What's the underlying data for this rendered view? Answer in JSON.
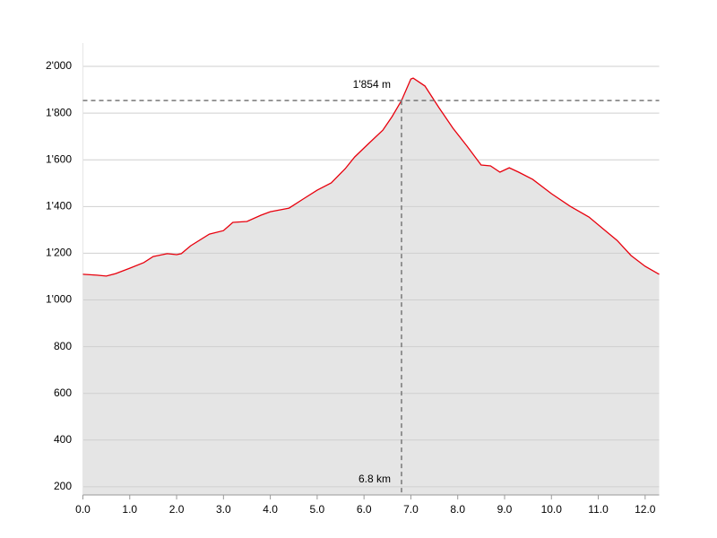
{
  "chart_data": {
    "type": "area",
    "x": [
      0.0,
      0.3,
      0.5,
      0.7,
      1.0,
      1.3,
      1.5,
      1.8,
      2.0,
      2.1,
      2.3,
      2.7,
      3.0,
      3.2,
      3.5,
      3.8,
      4.0,
      4.4,
      4.7,
      5.0,
      5.3,
      5.6,
      5.8,
      6.1,
      6.4,
      6.6,
      6.8,
      7.0,
      7.05,
      7.3,
      7.6,
      7.9,
      8.2,
      8.5,
      8.7,
      8.9,
      9.1,
      9.3,
      9.6,
      10.0,
      10.4,
      10.8,
      11.1,
      11.4,
      11.7,
      12.0,
      12.3
    ],
    "series": [
      {
        "color": "#e8000d",
        "fill": "#e5e5e5",
        "values": [
          1110,
          1106,
          1102,
          1113,
          1136,
          1160,
          1186,
          1198,
          1194,
          1198,
          1232,
          1282,
          1297,
          1332,
          1336,
          1363,
          1378,
          1393,
          1432,
          1470,
          1501,
          1562,
          1612,
          1670,
          1727,
          1785,
          1854,
          1946,
          1950,
          1916,
          1823,
          1735,
          1658,
          1578,
          1574,
          1547,
          1566,
          1547,
          1516,
          1455,
          1401,
          1355,
          1305,
          1255,
          1190,
          1144,
          1110
        ]
      }
    ],
    "xlim": [
      0,
      12.3
    ],
    "ylim": [
      165,
      2100
    ],
    "xticks": [
      {
        "value": 0,
        "label": "0.0"
      },
      {
        "value": 1,
        "label": "1.0"
      },
      {
        "value": 2,
        "label": "2.0"
      },
      {
        "value": 3,
        "label": "3.0"
      },
      {
        "value": 4,
        "label": "4.0"
      },
      {
        "value": 5,
        "label": "5.0"
      },
      {
        "value": 6,
        "label": "6.0"
      },
      {
        "value": 7,
        "label": "7.0"
      },
      {
        "value": 8,
        "label": "8.0"
      },
      {
        "value": 9,
        "label": "9.0"
      },
      {
        "value": 10,
        "label": "10.0"
      },
      {
        "value": 11,
        "label": "11.0"
      },
      {
        "value": 12,
        "label": "12.0"
      }
    ],
    "yticks": [
      200,
      400,
      600,
      800,
      {
        "value": 1000,
        "label": "1'000"
      },
      {
        "value": 1200,
        "label": "1'200"
      },
      {
        "value": 1400,
        "label": "1'400"
      },
      {
        "value": 1600,
        "label": "1'600"
      },
      {
        "value": 1800,
        "label": "1'800"
      },
      {
        "value": 2000,
        "label": "2'000"
      }
    ],
    "grid": true,
    "crosshair": {
      "x": 6.8,
      "x_label": "6.8 km",
      "y": 1854,
      "y_label": "1'854 m"
    }
  }
}
